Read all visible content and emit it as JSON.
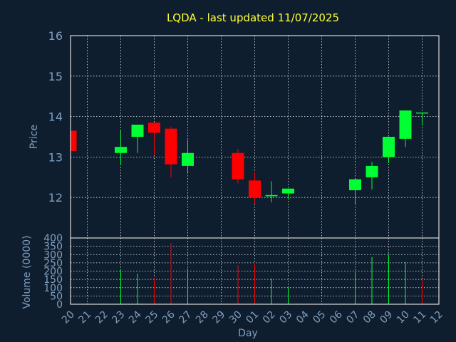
{
  "title": "LQDA - last updated 11/07/2025",
  "colors": {
    "background": "#0f1e2e",
    "up": "#00ff33",
    "down": "#ff0000",
    "title": "#ffff33",
    "axis_text": "#7f9fbf"
  },
  "chart_data": [
    {
      "type": "candlestick",
      "title": "LQDA - last updated 11/07/2025",
      "ylabel": "Price",
      "ylim": [
        11,
        16
      ],
      "yticks": [
        "12",
        "13",
        "14",
        "15",
        "16"
      ],
      "grid": true,
      "xlabel": "Day",
      "x_tick_labels": [
        "20",
        "21",
        "22",
        "23",
        "24",
        "25",
        "26",
        "27",
        "28",
        "29",
        "30",
        "01",
        "02",
        "03",
        "04",
        "05",
        "06",
        "07",
        "08",
        "09",
        "10",
        "11",
        "12"
      ],
      "candles": [
        {
          "slot": 0,
          "open": 13.65,
          "high": 13.65,
          "low": 13.15,
          "close": 13.15
        },
        {
          "slot": 3,
          "open": 13.1,
          "high": 13.65,
          "low": 12.8,
          "close": 13.25
        },
        {
          "slot": 4,
          "open": 13.5,
          "high": 13.8,
          "low": 13.1,
          "close": 13.8
        },
        {
          "slot": 5,
          "open": 13.85,
          "high": 13.85,
          "low": 13.05,
          "close": 13.6
        },
        {
          "slot": 6,
          "open": 13.7,
          "high": 13.75,
          "low": 12.5,
          "close": 12.82
        },
        {
          "slot": 7,
          "open": 12.78,
          "high": 13.42,
          "low": 12.62,
          "close": 13.1
        },
        {
          "slot": 10,
          "open": 13.1,
          "high": 13.2,
          "low": 12.35,
          "close": 12.45
        },
        {
          "slot": 11,
          "open": 12.42,
          "high": 12.62,
          "low": 11.85,
          "close": 12.0
        },
        {
          "slot": 12,
          "open": 12.03,
          "high": 12.4,
          "low": 11.88,
          "close": 12.06
        },
        {
          "slot": 13,
          "open": 12.1,
          "high": 12.22,
          "low": 11.95,
          "close": 12.22
        },
        {
          "slot": 17,
          "open": 12.18,
          "high": 12.45,
          "low": 11.82,
          "close": 12.45
        },
        {
          "slot": 18,
          "open": 12.5,
          "high": 12.88,
          "low": 12.2,
          "close": 12.78
        },
        {
          "slot": 19,
          "open": 13.0,
          "high": 13.5,
          "low": 12.85,
          "close": 13.5
        },
        {
          "slot": 20,
          "open": 13.45,
          "high": 14.15,
          "low": 13.25,
          "close": 14.15
        },
        {
          "slot": 21,
          "open": 14.1,
          "high": 14.1,
          "low": 13.78,
          "close": 14.1
        }
      ]
    },
    {
      "type": "bar",
      "ylabel": "Volume (0000)",
      "xlabel": "Day",
      "ylim": [
        0,
        400
      ],
      "yticks": [
        "0",
        "50",
        "100",
        "150",
        "200",
        "250",
        "300",
        "350",
        "400"
      ],
      "grid": true,
      "x_tick_labels": [
        "20",
        "21",
        "22",
        "23",
        "24",
        "25",
        "26",
        "27",
        "28",
        "29",
        "30",
        "01",
        "02",
        "03",
        "04",
        "05",
        "06",
        "07",
        "08",
        "09",
        "10",
        "11",
        "12"
      ],
      "bars": [
        {
          "slot": 0,
          "value": 0,
          "dir": "down"
        },
        {
          "slot": 3,
          "value": 210,
          "dir": "up"
        },
        {
          "slot": 4,
          "value": 185,
          "dir": "up"
        },
        {
          "slot": 5,
          "value": 160,
          "dir": "down"
        },
        {
          "slot": 6,
          "value": 370,
          "dir": "down"
        },
        {
          "slot": 7,
          "value": 215,
          "dir": "up"
        },
        {
          "slot": 10,
          "value": 235,
          "dir": "down"
        },
        {
          "slot": 11,
          "value": 245,
          "dir": "down"
        },
        {
          "slot": 12,
          "value": 155,
          "dir": "up"
        },
        {
          "slot": 13,
          "value": 105,
          "dir": "up"
        },
        {
          "slot": 17,
          "value": 195,
          "dir": "up"
        },
        {
          "slot": 18,
          "value": 285,
          "dir": "up"
        },
        {
          "slot": 19,
          "value": 300,
          "dir": "up"
        },
        {
          "slot": 20,
          "value": 255,
          "dir": "up"
        },
        {
          "slot": 21,
          "value": 150,
          "dir": "down"
        }
      ]
    }
  ]
}
